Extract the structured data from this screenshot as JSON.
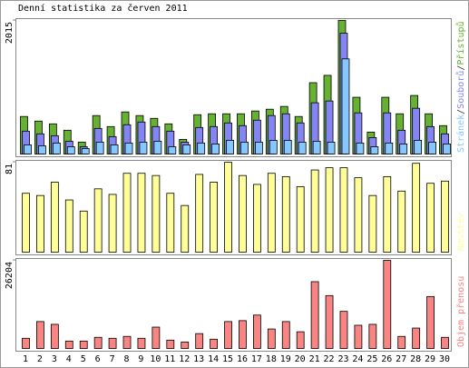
{
  "title": "Denní statistika za červen 2011",
  "chart_data": [
    {
      "type": "bar",
      "ylim": [
        0,
        2015
      ],
      "yticks": [
        2015
      ],
      "legend_separator": "/",
      "series": [
        {
          "name": "Přístupů",
          "color": "#66b032",
          "values": [
            566,
            497,
            455,
            359,
            179,
            580,
            414,
            635,
            580,
            538,
            455,
            221,
            593,
            607,
            607,
            607,
            649,
            676,
            718,
            566,
            1076,
            1187,
            2015,
            856,
            331,
            856,
            607,
            883,
            607,
            428
          ]
        },
        {
          "name": "Souborů",
          "color": "#8484f4",
          "values": [
            345,
            304,
            276,
            193,
            110,
            386,
            262,
            442,
            483,
            414,
            345,
            179,
            400,
            414,
            469,
            428,
            511,
            580,
            607,
            469,
            773,
            800,
            1822,
            621,
            248,
            621,
            359,
            690,
            414,
            304
          ]
        },
        {
          "name": "Stránek",
          "color": "#84c8ff",
          "values": [
            138,
            124,
            166,
            110,
            83,
            179,
            138,
            166,
            179,
            193,
            110,
            138,
            166,
            152,
            207,
            179,
            179,
            207,
            207,
            179,
            193,
            179,
            1435,
            166,
            110,
            166,
            152,
            207,
            179,
            152
          ]
        }
      ]
    },
    {
      "type": "bar",
      "ylim": [
        0,
        81
      ],
      "yticks": [
        81
      ],
      "series": [
        {
          "name": "Návštěv",
          "color": "#ffff99",
          "values": [
            53,
            51,
            63,
            47,
            37,
            57,
            52,
            71,
            71,
            69,
            53,
            42,
            70,
            63,
            81,
            69,
            61,
            71,
            68,
            59,
            74,
            76,
            76,
            67,
            51,
            68,
            55,
            80,
            62,
            64
          ]
        }
      ]
    },
    {
      "type": "bar",
      "ylim": [
        0,
        26204
      ],
      "yticks": [
        26204
      ],
      "categories": [
        "1",
        "2",
        "3",
        "4",
        "5",
        "6",
        "7",
        "8",
        "9",
        "10",
        "11",
        "12",
        "13",
        "14",
        "15",
        "16",
        "17",
        "18",
        "19",
        "20",
        "21",
        "22",
        "23",
        "24",
        "25",
        "26",
        "27",
        "28",
        "29",
        "30"
      ],
      "category_colors": [
        "#000",
        "#000",
        "#000",
        "#66b032",
        "#66b032",
        "#000",
        "#000",
        "#000",
        "#000",
        "#000",
        "#66b032",
        "#66b032",
        "#000",
        "#000",
        "#000",
        "#000",
        "#000",
        "#66b032",
        "#66b032",
        "#000",
        "#000",
        "#000",
        "#000",
        "#000",
        "#66b032",
        "#66b032",
        "#000",
        "#000",
        "#000",
        "#000"
      ],
      "series": [
        {
          "name": "Objem přenosu",
          "color": "#f88484",
          "values": [
            3034,
            7998,
            7171,
            2206,
            2206,
            3310,
            3034,
            3585,
            3034,
            6343,
            2482,
            1931,
            4413,
            2758,
            7998,
            8274,
            9929,
            5792,
            7998,
            4964,
            19858,
            15721,
            11032,
            6895,
            7171,
            26204,
            3585,
            6068,
            15445,
            3310
          ]
        }
      ]
    }
  ]
}
